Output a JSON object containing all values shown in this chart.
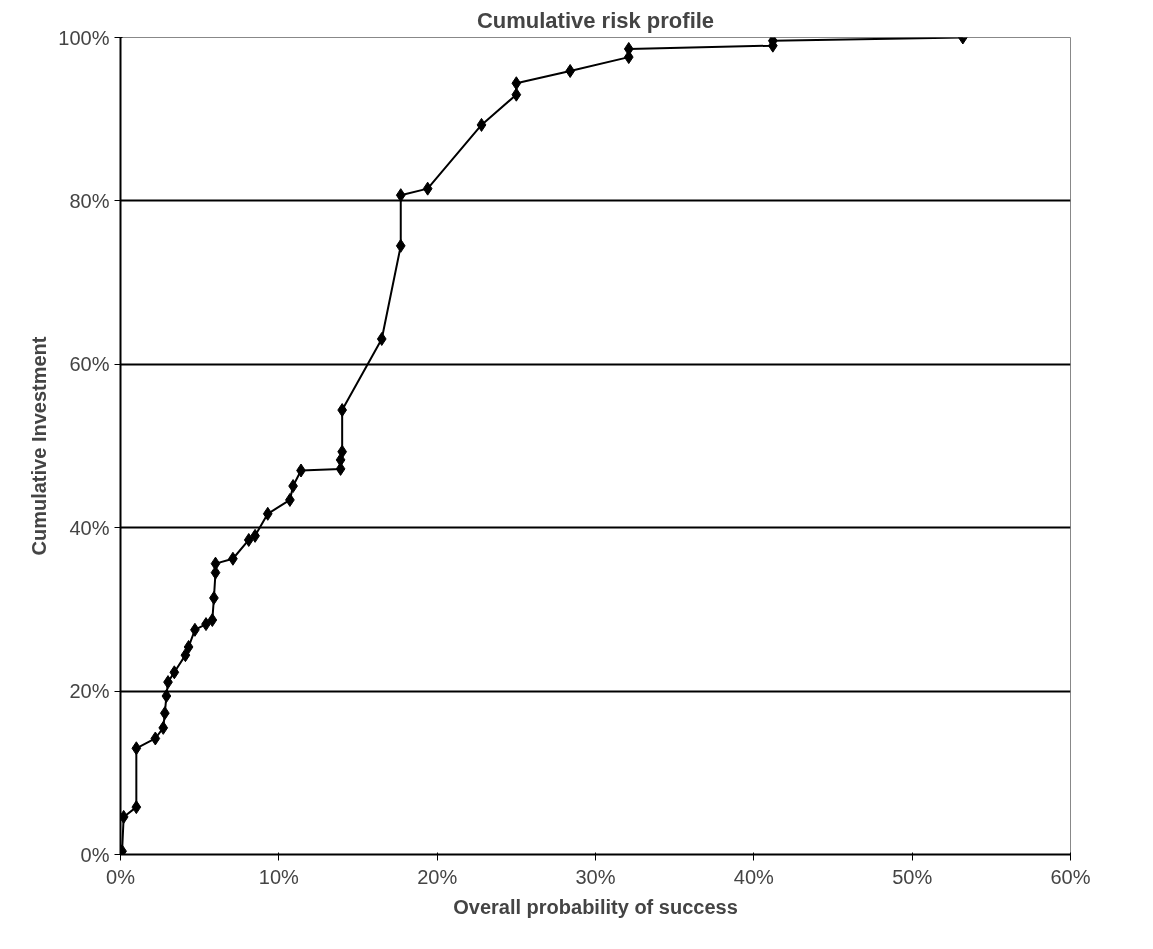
{
  "chart_data": {
    "type": "line",
    "title": "Cumulative risk profile",
    "xlabel": "Overall probability of success",
    "ylabel": "Cumulative Investment",
    "x": [
      0.1,
      0.2,
      1.0,
      1.0,
      2.2,
      2.7,
      2.8,
      2.9,
      3.0,
      3.4,
      4.1,
      4.3,
      4.7,
      5.4,
      5.8,
      5.9,
      6.0,
      6.0,
      7.1,
      8.1,
      8.5,
      9.3,
      10.7,
      10.9,
      11.4,
      13.9,
      13.9,
      14.0,
      14.0,
      16.5,
      17.7,
      17.7,
      19.4,
      22.8,
      25.0,
      25.0,
      28.4,
      32.1,
      32.1,
      41.2,
      41.2,
      53.2
    ],
    "series": [
      {
        "color": "#000000",
        "values": [
          0.4,
          4.6,
          5.8,
          13.0,
          14.2,
          15.5,
          17.3,
          19.4,
          21.1,
          22.3,
          24.4,
          25.4,
          27.5,
          28.2,
          28.7,
          31.4,
          34.5,
          35.6,
          36.2,
          38.5,
          39.0,
          41.7,
          43.4,
          45.1,
          47.0,
          47.2,
          48.3,
          49.3,
          54.4,
          63.1,
          74.5,
          80.7,
          81.5,
          89.3,
          93.0,
          94.4,
          95.9,
          97.6,
          98.6,
          99.0,
          99.6,
          100
        ]
      }
    ],
    "xlim": [
      0,
      60
    ],
    "ylim": [
      0,
      100
    ],
    "xticks": [
      {
        "value": 0,
        "label": "0%"
      },
      {
        "value": 10,
        "label": "10%"
      },
      {
        "value": 20,
        "label": "20%"
      },
      {
        "value": 30,
        "label": "30%"
      },
      {
        "value": 40,
        "label": "40%"
      },
      {
        "value": 50,
        "label": "50%"
      },
      {
        "value": 60,
        "label": "60%"
      }
    ],
    "yticks": [
      {
        "value": 0,
        "label": "0%"
      },
      {
        "value": 20,
        "label": "20%"
      },
      {
        "value": 40,
        "label": "40%"
      },
      {
        "value": 60,
        "label": "60%"
      },
      {
        "value": 80,
        "label": "80%"
      },
      {
        "value": 100,
        "label": "100%"
      }
    ],
    "grid": "y",
    "marker": "diamond",
    "line_style": "solid"
  }
}
